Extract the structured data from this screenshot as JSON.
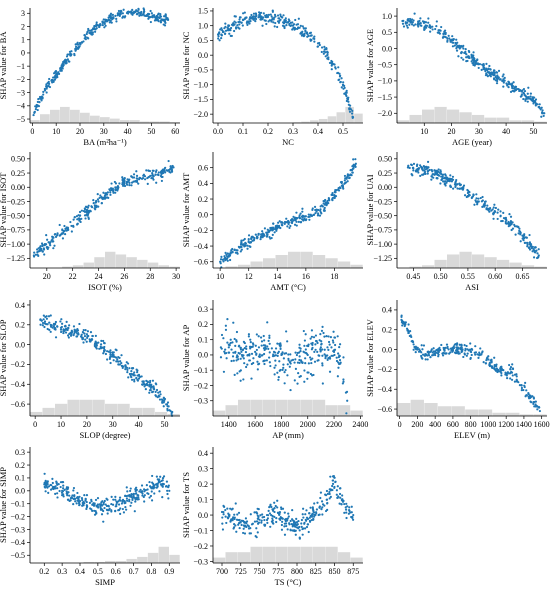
{
  "colors": {
    "point": "#1f77b4",
    "histogram": "#d9d9d9",
    "axis": "#000000"
  },
  "chart_data": [
    {
      "type": "scatter",
      "id": "ba",
      "xlabel": "BA (m²ha⁻¹)",
      "ylabel": "SHAP value for BA",
      "xlim": [
        -1,
        62
      ],
      "ylim": [
        -5.3,
        3.4
      ],
      "xticks": [
        0,
        10,
        20,
        30,
        40,
        50,
        60
      ],
      "yticks": [
        -5,
        -4,
        -3,
        -2,
        -1,
        0,
        1,
        2,
        3
      ],
      "ytick_labels": [
        "−5",
        "−4",
        "−3",
        "−2",
        "−1",
        "0",
        "1",
        "2",
        "3"
      ],
      "hist": [
        2,
        6,
        9,
        11,
        9,
        7,
        5,
        4,
        3,
        2,
        2,
        1,
        1,
        1,
        0.5
      ],
      "series": [
        {
          "x": [
            0.5,
            2,
            4,
            6,
            8,
            10,
            12,
            14,
            16,
            18,
            20,
            22,
            24,
            26,
            28,
            30,
            32,
            34,
            36,
            38,
            40,
            43,
            48,
            57
          ],
          "y": [
            -4.7,
            -4.0,
            -3.3,
            -2.7,
            -2.1,
            -1.6,
            -1.1,
            -0.6,
            -0.2,
            0.3,
            0.7,
            1.1,
            1.5,
            1.8,
            2.1,
            2.3,
            2.5,
            2.7,
            2.9,
            3.0,
            3.1,
            3.1,
            2.8,
            2.5
          ],
          "spread": 0.35,
          "count": 330
        }
      ]
    },
    {
      "type": "scatter",
      "id": "nc",
      "xlabel": "NC",
      "ylabel": "SHAP value for NC",
      "xlim": [
        -0.02,
        0.58
      ],
      "ylim": [
        -2.3,
        1.6
      ],
      "xticks": [
        0.0,
        0.1,
        0.2,
        0.3,
        0.4,
        0.5
      ],
      "xtick_labels": [
        "0.0",
        "0.1",
        "0.2",
        "0.3",
        "0.4",
        "0.5"
      ],
      "yticks": [
        -2.0,
        -1.5,
        -1.0,
        -0.5,
        0.0,
        0.5,
        1.0,
        1.5
      ],
      "ytick_labels": [
        "−2.0",
        "−1.5",
        "−1.0",
        "−0.5",
        "0.0",
        "0.5",
        "1.0",
        "1.5"
      ],
      "hist": [
        0,
        0,
        0,
        0,
        0,
        0,
        0,
        0,
        0,
        0.5,
        1,
        2,
        3,
        5,
        8,
        12,
        7
      ],
      "series": [
        {
          "x": [
            0.0,
            0.1,
            0.15,
            0.2,
            0.25,
            0.3,
            0.35,
            0.4,
            0.43,
            0.46,
            0.48,
            0.5,
            0.52,
            0.54
          ],
          "y": [
            0.7,
            1.2,
            1.3,
            1.3,
            1.2,
            1.0,
            0.8,
            0.4,
            0.1,
            -0.3,
            -0.6,
            -1.0,
            -1.5,
            -2.1
          ],
          "spread": 0.2,
          "count": 300
        }
      ]
    },
    {
      "type": "scatter",
      "id": "age",
      "xlabel": "AGE (year)",
      "ylabel": "SHAP value for AGE",
      "xlim": [
        0,
        55
      ],
      "ylim": [
        -2.3,
        1.25
      ],
      "xticks": [
        10,
        20,
        30,
        40,
        50
      ],
      "yticks": [
        -2.0,
        -1.5,
        -1.0,
        -0.5,
        0.0,
        0.5,
        1.0
      ],
      "ytick_labels": [
        "−2.0",
        "−1.5",
        "−1.0",
        "−0.5",
        "0.0",
        "0.5",
        "1.0"
      ],
      "hist": [
        1,
        3,
        5,
        6,
        5,
        4,
        3,
        2,
        2,
        1,
        1,
        0.5
      ],
      "series": [
        {
          "x": [
            2,
            5,
            8,
            11,
            14,
            17,
            20,
            23,
            26,
            29,
            32,
            35,
            38,
            41,
            44,
            47,
            50,
            54
          ],
          "y": [
            0.85,
            0.8,
            0.75,
            0.7,
            0.6,
            0.45,
            0.25,
            0.0,
            -0.25,
            -0.45,
            -0.6,
            -0.8,
            -0.95,
            -1.1,
            -1.25,
            -1.45,
            -1.6,
            -2.0
          ],
          "spread": 0.16,
          "count": 330
        }
      ]
    },
    {
      "type": "scatter",
      "id": "isot",
      "xlabel": "ISOT (%)",
      "ylabel": "SHAP value for ISOT",
      "xlim": [
        18.7,
        30.3
      ],
      "ylim": [
        -1.42,
        0.62
      ],
      "xticks": [
        20,
        22,
        24,
        26,
        28,
        30
      ],
      "yticks": [
        -1.25,
        -1.0,
        -0.75,
        -0.5,
        -0.25,
        0.0,
        0.25,
        0.5
      ],
      "ytick_labels": [
        "−1.25",
        "−1.00",
        "−0.75",
        "−0.50",
        "−0.25",
        "0.00",
        "0.25",
        "0.50"
      ],
      "hist": [
        0,
        0,
        0,
        0.5,
        1,
        2,
        4,
        6,
        5,
        4,
        3,
        2,
        1,
        0.5
      ],
      "series": [
        {
          "x": [
            19,
            21,
            22.5,
            23.5,
            24,
            24.5,
            25,
            25.5,
            26,
            27,
            28,
            29,
            29.8
          ],
          "y": [
            -1.2,
            -0.85,
            -0.55,
            -0.35,
            -0.25,
            -0.15,
            -0.05,
            0.02,
            0.08,
            0.15,
            0.2,
            0.25,
            0.35
          ],
          "spread": 0.1,
          "count": 300
        }
      ]
    },
    {
      "type": "scatter",
      "id": "amt",
      "xlabel": "AMT (°C)",
      "ylabel": "SHAP value for AMT",
      "xlim": [
        9.5,
        20
      ],
      "ylim": [
        -0.68,
        0.8
      ],
      "xticks": [
        10,
        12,
        14,
        16,
        18
      ],
      "yticks": [
        -0.6,
        -0.4,
        -0.2,
        0.0,
        0.2,
        0.4,
        0.6
      ],
      "ytick_labels": [
        "−0.6",
        "−0.4",
        "−0.2",
        "0.0",
        "0.2",
        "0.4",
        "0.6"
      ],
      "hist": [
        0,
        0.5,
        1,
        2,
        3,
        4,
        5,
        5,
        4,
        3,
        2,
        1
      ],
      "series": [
        {
          "x": [
            10,
            11,
            12,
            13,
            14,
            15,
            16,
            17,
            18,
            19,
            19.5
          ],
          "y": [
            -0.6,
            -0.45,
            -0.35,
            -0.25,
            -0.17,
            -0.1,
            -0.02,
            0.05,
            0.25,
            0.5,
            0.65
          ],
          "spread": 0.07,
          "count": 320
        }
      ]
    },
    {
      "type": "scatter",
      "id": "asi",
      "xlabel": "ASI",
      "ylabel": "SHAP value for UAI",
      "xlim": [
        0.42,
        0.695
      ],
      "ylim": [
        -1.42,
        0.62
      ],
      "xticks": [
        0.45,
        0.5,
        0.55,
        0.6,
        0.65
      ],
      "xtick_labels": [
        "0.45",
        "0.50",
        "0.55",
        "0.60",
        "0.65"
      ],
      "yticks": [
        -1.25,
        -1.0,
        -0.75,
        -0.5,
        -0.25,
        0.0,
        0.25,
        0.5
      ],
      "ytick_labels": [
        "−1.25",
        "−1.00",
        "−0.75",
        "−0.50",
        "−0.25",
        "0.00",
        "0.25",
        "0.50"
      ],
      "hist": [
        0,
        0.5,
        1,
        3,
        5,
        6,
        5,
        4,
        3,
        2,
        1,
        0.5
      ],
      "series": [
        {
          "x": [
            0.44,
            0.47,
            0.49,
            0.51,
            0.53,
            0.55,
            0.57,
            0.59,
            0.61,
            0.63,
            0.65,
            0.68
          ],
          "y": [
            0.35,
            0.3,
            0.25,
            0.15,
            0.05,
            -0.1,
            -0.25,
            -0.38,
            -0.5,
            -0.65,
            -0.85,
            -1.2
          ],
          "spread": 0.1,
          "count": 300
        }
      ]
    },
    {
      "type": "scatter",
      "id": "slop",
      "xlabel": "SLOP (degree)",
      "ylabel": "SHAP value for SLOP",
      "xlim": [
        -2,
        56
      ],
      "ylim": [
        -0.72,
        0.45
      ],
      "xticks": [
        0,
        10,
        20,
        30,
        40,
        50
      ],
      "yticks": [
        -0.6,
        -0.4,
        -0.2,
        0.0,
        0.2,
        0.4
      ],
      "ytick_labels": [
        "−0.6",
        "−0.4",
        "−0.2",
        "0.0",
        "0.2",
        "0.4"
      ],
      "hist": [
        1,
        2,
        3,
        4,
        4,
        4,
        3,
        3,
        2,
        2,
        1,
        0.5
      ],
      "series": [
        {
          "x": [
            2,
            6,
            10,
            14,
            18,
            22,
            26,
            30,
            34,
            38,
            42,
            46,
            53
          ],
          "y": [
            0.25,
            0.2,
            0.17,
            0.12,
            0.1,
            0.05,
            -0.03,
            -0.12,
            -0.22,
            -0.3,
            -0.37,
            -0.45,
            -0.68
          ],
          "spread": 0.07,
          "count": 300
        }
      ]
    },
    {
      "type": "scatter",
      "id": "ap",
      "xlabel": "AP (mm)",
      "ylabel": "SHAP value for AP",
      "xlim": [
        1280,
        2420
      ],
      "ylim": [
        -0.4,
        0.36
      ],
      "xticks": [
        1400,
        1600,
        1800,
        2000,
        2200,
        2400
      ],
      "yticks": [
        -0.3,
        -0.2,
        -0.1,
        0.0,
        0.1,
        0.2,
        0.3
      ],
      "ytick_labels": [
        "−0.3",
        "−0.2",
        "−0.1",
        "0.0",
        "0.1",
        "0.2",
        "0.3"
      ],
      "hist": [
        1,
        2,
        3,
        3,
        3,
        3,
        3,
        3,
        3,
        2,
        2,
        1
      ],
      "series": [
        {
          "x": [
            1340,
            1400,
            1450,
            1500,
            1550,
            1600,
            1700,
            1800,
            1900,
            1950,
            2000,
            2050,
            2100,
            2150,
            2200,
            2250,
            2300
          ],
          "y": [
            0.05,
            0.05,
            0.02,
            0.0,
            0.0,
            0.02,
            0.04,
            0.0,
            -0.05,
            -0.04,
            0.0,
            0.02,
            0.05,
            0.05,
            0.02,
            -0.05,
            -0.3
          ],
          "spread": 0.13,
          "count": 330
        }
      ]
    },
    {
      "type": "scatter",
      "id": "elev",
      "xlabel": "ELEV (m)",
      "ylabel": "SHAP value for ELEV",
      "xlim": [
        -30,
        1660
      ],
      "ylim": [
        -0.67,
        0.5
      ],
      "xticks": [
        0,
        200,
        400,
        600,
        800,
        1000,
        1200,
        1400,
        1600
      ],
      "yticks": [
        -0.6,
        -0.4,
        -0.2,
        0.0,
        0.2,
        0.4
      ],
      "ytick_labels": [
        "−0.6",
        "−0.4",
        "−0.2",
        "0.0",
        "0.2",
        "0.4"
      ],
      "hist": [
        4,
        5,
        4,
        3,
        3,
        2,
        2,
        1,
        1,
        0.5,
        0.5
      ],
      "series": [
        {
          "x": [
            20,
            60,
            100,
            150,
            200,
            300,
            400,
            500,
            600,
            700,
            800,
            900,
            1000,
            1100,
            1200,
            1250,
            1580
          ],
          "y": [
            0.3,
            0.25,
            0.18,
            0.08,
            0.0,
            -0.05,
            -0.02,
            0.0,
            0.0,
            0.0,
            -0.02,
            -0.05,
            -0.1,
            -0.2,
            -0.25,
            -0.2,
            -0.62
          ],
          "spread": 0.06,
          "count": 300
        }
      ]
    },
    {
      "type": "scatter",
      "id": "simp",
      "xlabel": "SIMP",
      "ylabel": "SHAP value for SIMP",
      "xlim": [
        0.12,
        0.96
      ],
      "ylim": [
        -0.56,
        0.34
      ],
      "xticks": [
        0.2,
        0.3,
        0.4,
        0.5,
        0.6,
        0.7,
        0.8,
        0.9
      ],
      "xtick_labels": [
        "0.2",
        "0.3",
        "0.4",
        "0.5",
        "0.6",
        "0.7",
        "0.8",
        "0.9"
      ],
      "yticks": [
        -0.5,
        -0.4,
        -0.3,
        -0.2,
        -0.1,
        0.0,
        0.1,
        0.2,
        0.3
      ],
      "ytick_labels": [
        "−0.5",
        "−0.4",
        "−0.3",
        "−0.2",
        "−0.1",
        "0.0",
        "0.1",
        "0.2",
        "0.3"
      ],
      "hist": [
        0,
        0,
        0,
        0,
        0,
        0.5,
        0.5,
        1,
        1,
        2,
        3,
        5,
        8,
        4
      ],
      "series": [
        {
          "x": [
            0.2,
            0.3,
            0.4,
            0.5,
            0.6,
            0.65,
            0.7,
            0.75,
            0.8,
            0.83,
            0.86,
            0.9
          ],
          "y": [
            0.05,
            0.0,
            -0.08,
            -0.12,
            -0.12,
            -0.08,
            -0.05,
            -0.02,
            0.02,
            0.05,
            0.05,
            0.0
          ],
          "spread": 0.06,
          "count": 320
        }
      ]
    },
    {
      "type": "scatter",
      "id": "ts",
      "xlabel": "TS (°C)",
      "ylabel": "SHAP value for TS",
      "xlim": [
        688,
        888
      ],
      "ylim": [
        -0.31,
        0.44
      ],
      "xticks": [
        700,
        725,
        750,
        775,
        800,
        825,
        850,
        875
      ],
      "yticks": [
        -0.3,
        -0.2,
        -0.1,
        0.0,
        0.1,
        0.2,
        0.3,
        0.4
      ],
      "ytick_labels": [
        "−0.3",
        "−0.2",
        "−0.1",
        "0.0",
        "0.1",
        "0.2",
        "0.3",
        "0.4"
      ],
      "hist": [
        1,
        2,
        2,
        3,
        3,
        3,
        3,
        3,
        3,
        3,
        2,
        1
      ],
      "series": [
        {
          "x": [
            700,
            710,
            720,
            730,
            740,
            750,
            760,
            770,
            780,
            790,
            800,
            810,
            820,
            830,
            840,
            848,
            855,
            865,
            875
          ],
          "y": [
            0.02,
            0.0,
            -0.03,
            -0.05,
            -0.06,
            -0.03,
            0.0,
            0.02,
            -0.02,
            -0.06,
            -0.08,
            -0.05,
            0.0,
            0.05,
            0.1,
            0.25,
            0.12,
            0.05,
            0.0
          ],
          "spread": 0.07,
          "count": 320
        }
      ]
    }
  ]
}
